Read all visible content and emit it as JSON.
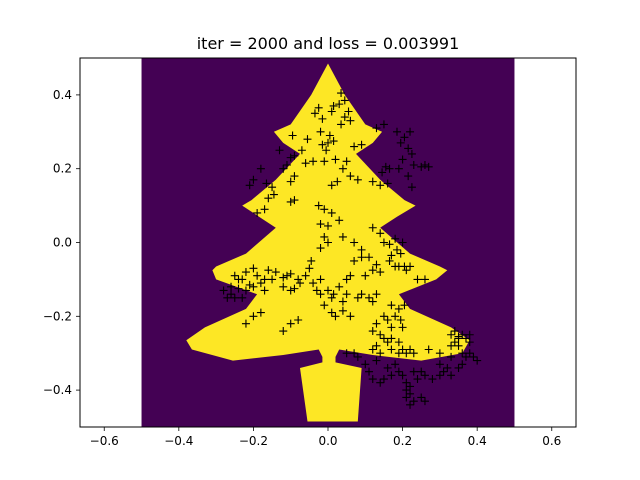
{
  "chart_data": {
    "type": "scatter",
    "title": "iter = 2000 and loss = 0.003991",
    "xlabel": "",
    "ylabel": "",
    "xlim": [
      -0.665,
      0.665
    ],
    "ylim": [
      -0.5,
      0.5
    ],
    "xticks": [
      -0.6,
      -0.4,
      -0.2,
      0.0,
      0.2,
      0.4,
      0.6
    ],
    "xtick_labels": [
      "−0.6",
      "−0.4",
      "−0.2",
      "0.0",
      "0.2",
      "0.4",
      "0.6"
    ],
    "yticks": [
      -0.4,
      -0.2,
      0.0,
      0.2,
      0.4
    ],
    "ytick_labels": [
      "−0.4",
      "−0.2",
      "0.0",
      "0.2",
      "0.4"
    ],
    "grid": false,
    "background_region": {
      "x": [
        -0.5,
        0.5
      ],
      "y": [
        -0.5,
        0.5
      ],
      "color": "#440154"
    },
    "decision_region": {
      "shape": "christmas tree",
      "color": "#fde725"
    },
    "tree_outline": [
      [
        0.0,
        0.485
      ],
      [
        0.045,
        0.4
      ],
      [
        0.1,
        0.32
      ],
      [
        0.145,
        0.3
      ],
      [
        0.12,
        0.27
      ],
      [
        0.075,
        0.24
      ],
      [
        0.14,
        0.17
      ],
      [
        0.205,
        0.115
      ],
      [
        0.235,
        0.1
      ],
      [
        0.185,
        0.07
      ],
      [
        0.14,
        0.04
      ],
      [
        0.22,
        -0.03
      ],
      [
        0.3,
        -0.065
      ],
      [
        0.32,
        -0.075
      ],
      [
        0.29,
        -0.1
      ],
      [
        0.19,
        -0.14
      ],
      [
        0.22,
        -0.18
      ],
      [
        0.33,
        -0.23
      ],
      [
        0.38,
        -0.265
      ],
      [
        0.36,
        -0.3
      ],
      [
        0.25,
        -0.32
      ],
      [
        0.12,
        -0.305
      ],
      [
        0.03,
        -0.29
      ],
      [
        0.02,
        -0.31
      ],
      [
        0.02,
        -0.325
      ],
      [
        0.09,
        -0.34
      ],
      [
        0.08,
        -0.485
      ],
      [
        -0.055,
        -0.485
      ],
      [
        -0.075,
        -0.34
      ],
      [
        -0.015,
        -0.325
      ],
      [
        -0.015,
        -0.31
      ],
      [
        -0.025,
        -0.29
      ],
      [
        -0.12,
        -0.305
      ],
      [
        -0.255,
        -0.32
      ],
      [
        -0.365,
        -0.29
      ],
      [
        -0.38,
        -0.265
      ],
      [
        -0.33,
        -0.23
      ],
      [
        -0.22,
        -0.18
      ],
      [
        -0.19,
        -0.14
      ],
      [
        -0.3,
        -0.1
      ],
      [
        -0.31,
        -0.075
      ],
      [
        -0.3,
        -0.065
      ],
      [
        -0.22,
        -0.03
      ],
      [
        -0.14,
        0.04
      ],
      [
        -0.185,
        0.07
      ],
      [
        -0.23,
        0.1
      ],
      [
        -0.205,
        0.115
      ],
      [
        -0.14,
        0.17
      ],
      [
        -0.075,
        0.24
      ],
      [
        -0.12,
        0.27
      ],
      [
        -0.145,
        0.3
      ],
      [
        -0.1,
        0.32
      ],
      [
        -0.045,
        0.4
      ]
    ],
    "series": [
      {
        "marker": "+",
        "color": "#000000",
        "points": [
          [
            0.035,
            0.405
          ],
          [
            0.045,
            0.385
          ],
          [
            0.03,
            0.375
          ],
          [
            0.015,
            0.37
          ],
          [
            0.055,
            0.355
          ],
          [
            -0.025,
            0.365
          ],
          [
            -0.035,
            0.35
          ],
          [
            0.01,
            0.355
          ],
          [
            -0.015,
            0.335
          ],
          [
            0.045,
            0.34
          ],
          [
            0.035,
            0.32
          ],
          [
            0.06,
            0.33
          ],
          [
            -0.02,
            0.3
          ],
          [
            0.005,
            0.29
          ],
          [
            0.0,
            0.27
          ],
          [
            -0.015,
            0.265
          ],
          [
            0.015,
            0.275
          ],
          [
            -0.005,
            0.25
          ],
          [
            0.02,
            0.225
          ],
          [
            -0.01,
            0.22
          ],
          [
            0.07,
            0.26
          ],
          [
            0.09,
            0.265
          ],
          [
            0.13,
            0.31
          ],
          [
            0.15,
            0.32
          ],
          [
            0.185,
            0.3
          ],
          [
            0.22,
            0.3
          ],
          [
            0.205,
            0.285
          ],
          [
            0.195,
            0.27
          ],
          [
            0.215,
            0.255
          ],
          [
            0.225,
            0.24
          ],
          [
            0.2,
            0.225
          ],
          [
            0.23,
            0.21
          ],
          [
            0.25,
            0.205
          ],
          [
            0.26,
            0.21
          ],
          [
            0.27,
            0.205
          ],
          [
            0.155,
            0.205
          ],
          [
            0.165,
            0.2
          ],
          [
            0.145,
            0.19
          ],
          [
            0.19,
            0.2
          ],
          [
            0.215,
            0.18
          ],
          [
            0.225,
            0.15
          ],
          [
            0.16,
            0.16
          ],
          [
            0.14,
            0.155
          ],
          [
            0.12,
            0.165
          ],
          [
            0.05,
            0.22
          ],
          [
            0.04,
            0.2
          ],
          [
            0.06,
            0.18
          ],
          [
            0.08,
            0.17
          ],
          [
            0.025,
            0.165
          ],
          [
            0.01,
            0.155
          ],
          [
            -0.04,
            0.22
          ],
          [
            -0.06,
            0.215
          ],
          [
            -0.09,
            0.235
          ],
          [
            -0.1,
            0.23
          ],
          [
            -0.07,
            0.25
          ],
          [
            -0.055,
            0.28
          ],
          [
            -0.095,
            0.29
          ],
          [
            -0.13,
            0.25
          ],
          [
            -0.18,
            0.2
          ],
          [
            -0.2,
            0.17
          ],
          [
            -0.21,
            0.155
          ],
          [
            -0.165,
            0.16
          ],
          [
            -0.15,
            0.15
          ],
          [
            -0.145,
            0.13
          ],
          [
            -0.16,
            0.12
          ],
          [
            -0.12,
            0.2
          ],
          [
            -0.11,
            0.21
          ],
          [
            -0.09,
            0.18
          ],
          [
            -0.1,
            0.165
          ],
          [
            -0.17,
            0.09
          ],
          [
            -0.19,
            0.08
          ],
          [
            -0.09,
            0.115
          ],
          [
            -0.1,
            0.11
          ],
          [
            -0.025,
            0.1
          ],
          [
            -0.01,
            0.09
          ],
          [
            0.01,
            0.08
          ],
          [
            0.03,
            0.06
          ],
          [
            -0.02,
            0.05
          ],
          [
            0.0,
            0.045
          ],
          [
            -0.01,
            0.015
          ],
          [
            0.0,
            0.0
          ],
          [
            -0.02,
            -0.015
          ],
          [
            -0.045,
            -0.05
          ],
          [
            -0.05,
            -0.07
          ],
          [
            -0.06,
            -0.09
          ],
          [
            0.04,
            0.015
          ],
          [
            0.07,
            0.0
          ],
          [
            0.09,
            -0.02
          ],
          [
            0.11,
            -0.04
          ],
          [
            0.13,
            -0.06
          ],
          [
            0.14,
            -0.08
          ],
          [
            0.12,
            -0.075
          ],
          [
            0.1,
            -0.09
          ],
          [
            0.12,
            0.04
          ],
          [
            0.14,
            0.025
          ],
          [
            0.15,
            0.0
          ],
          [
            0.165,
            -0.005
          ],
          [
            0.18,
            0.01
          ],
          [
            0.185,
            -0.02
          ],
          [
            0.195,
            -0.03
          ],
          [
            0.2,
            0.0
          ],
          [
            0.17,
            -0.035
          ],
          [
            0.165,
            -0.05
          ],
          [
            0.18,
            -0.065
          ],
          [
            0.19,
            -0.065
          ],
          [
            0.205,
            -0.065
          ],
          [
            0.22,
            -0.065
          ],
          [
            0.21,
            -0.075
          ],
          [
            0.24,
            -0.1
          ],
          [
            0.26,
            -0.1
          ],
          [
            0.09,
            -0.04
          ],
          [
            0.07,
            -0.05
          ],
          [
            0.06,
            -0.09
          ],
          [
            0.05,
            -0.1
          ],
          [
            -0.02,
            -0.1
          ],
          [
            -0.04,
            -0.11
          ],
          [
            -0.08,
            -0.1
          ],
          [
            -0.1,
            -0.085
          ],
          [
            -0.11,
            -0.09
          ],
          [
            -0.12,
            -0.095
          ],
          [
            -0.14,
            -0.08
          ],
          [
            -0.16,
            -0.075
          ],
          [
            -0.15,
            -0.1
          ],
          [
            -0.17,
            -0.1
          ],
          [
            -0.2,
            -0.07
          ],
          [
            -0.22,
            -0.08
          ],
          [
            -0.19,
            -0.09
          ],
          [
            -0.2,
            -0.12
          ],
          [
            -0.21,
            -0.115
          ],
          [
            -0.23,
            -0.1
          ],
          [
            -0.24,
            -0.1
          ],
          [
            -0.25,
            -0.09
          ],
          [
            -0.22,
            -0.13
          ],
          [
            -0.24,
            -0.125
          ],
          [
            -0.26,
            -0.12
          ],
          [
            -0.28,
            -0.13
          ],
          [
            -0.26,
            -0.14
          ],
          [
            -0.25,
            -0.15
          ],
          [
            -0.27,
            -0.15
          ],
          [
            -0.23,
            -0.15
          ],
          [
            -0.18,
            -0.11
          ],
          [
            -0.17,
            -0.13
          ],
          [
            -0.12,
            -0.12
          ],
          [
            -0.1,
            -0.13
          ],
          [
            -0.09,
            -0.125
          ],
          [
            -0.075,
            -0.11
          ],
          [
            -0.03,
            -0.13
          ],
          [
            -0.02,
            -0.14
          ],
          [
            0.0,
            -0.13
          ],
          [
            0.01,
            -0.15
          ],
          [
            0.015,
            -0.14
          ],
          [
            0.03,
            -0.12
          ],
          [
            0.04,
            -0.16
          ],
          [
            0.05,
            -0.14
          ],
          [
            0.08,
            -0.15
          ],
          [
            0.09,
            -0.14
          ],
          [
            0.11,
            -0.15
          ],
          [
            0.12,
            -0.16
          ],
          [
            0.13,
            -0.14
          ],
          [
            0.17,
            -0.17
          ],
          [
            0.19,
            -0.18
          ],
          [
            0.205,
            -0.17
          ],
          [
            0.15,
            -0.2
          ],
          [
            0.16,
            -0.21
          ],
          [
            0.18,
            -0.2
          ],
          [
            0.195,
            -0.21
          ],
          [
            0.2,
            -0.23
          ],
          [
            0.17,
            -0.23
          ],
          [
            0.13,
            -0.22
          ],
          [
            0.12,
            -0.24
          ],
          [
            0.14,
            -0.25
          ],
          [
            0.15,
            -0.26
          ],
          [
            0.17,
            -0.26
          ],
          [
            0.19,
            -0.27
          ],
          [
            0.16,
            -0.27
          ],
          [
            0.13,
            -0.28
          ],
          [
            0.12,
            -0.29
          ],
          [
            0.14,
            -0.3
          ],
          [
            0.17,
            -0.29
          ],
          [
            0.2,
            -0.29
          ],
          [
            0.22,
            -0.29
          ],
          [
            0.23,
            -0.3
          ],
          [
            0.21,
            -0.3
          ],
          [
            0.19,
            -0.3
          ],
          [
            0.27,
            -0.29
          ],
          [
            0.3,
            -0.3
          ],
          [
            0.33,
            -0.25
          ],
          [
            0.34,
            -0.24
          ],
          [
            0.35,
            -0.255
          ],
          [
            0.36,
            -0.25
          ],
          [
            0.37,
            -0.26
          ],
          [
            0.38,
            -0.25
          ],
          [
            0.34,
            -0.27
          ],
          [
            0.35,
            -0.28
          ],
          [
            0.36,
            -0.3
          ],
          [
            0.37,
            -0.31
          ],
          [
            0.38,
            -0.3
          ],
          [
            0.39,
            -0.31
          ],
          [
            0.4,
            -0.32
          ],
          [
            0.36,
            -0.33
          ],
          [
            0.35,
            -0.34
          ],
          [
            0.33,
            -0.31
          ],
          [
            0.32,
            -0.34
          ],
          [
            0.3,
            -0.33
          ],
          [
            0.31,
            -0.35
          ],
          [
            0.3,
            -0.36
          ],
          [
            0.33,
            -0.36
          ],
          [
            0.28,
            -0.37
          ],
          [
            0.26,
            -0.36
          ],
          [
            0.25,
            -0.35
          ],
          [
            0.23,
            -0.35
          ],
          [
            0.24,
            -0.37
          ],
          [
            0.2,
            -0.36
          ],
          [
            0.19,
            -0.35
          ],
          [
            0.17,
            -0.36
          ],
          [
            0.15,
            -0.37
          ],
          [
            0.14,
            -0.38
          ],
          [
            0.12,
            -0.37
          ],
          [
            0.11,
            -0.35
          ],
          [
            0.1,
            -0.33
          ],
          [
            0.08,
            -0.31
          ],
          [
            0.07,
            -0.3
          ],
          [
            0.05,
            -0.3
          ],
          [
            0.13,
            -0.32
          ],
          [
            0.16,
            -0.34
          ],
          [
            0.18,
            -0.33
          ],
          [
            0.21,
            -0.38
          ],
          [
            0.22,
            -0.39
          ],
          [
            0.21,
            -0.4
          ],
          [
            0.22,
            -0.41
          ],
          [
            0.21,
            -0.42
          ],
          [
            0.23,
            -0.43
          ],
          [
            0.22,
            -0.44
          ],
          [
            0.25,
            -0.42
          ],
          [
            0.26,
            -0.43
          ],
          [
            -0.18,
            -0.19
          ],
          [
            -0.2,
            -0.2
          ],
          [
            -0.22,
            -0.22
          ],
          [
            -0.1,
            -0.22
          ],
          [
            -0.12,
            -0.24
          ],
          [
            -0.08,
            -0.21
          ],
          [
            0.01,
            -0.19
          ],
          [
            0.02,
            -0.2
          ],
          [
            0.04,
            -0.185
          ],
          [
            0.06,
            -0.2
          ],
          [
            -0.01,
            -0.17
          ],
          [
            0.35,
            -0.26
          ],
          [
            0.33,
            -0.28
          ],
          [
            0.38,
            -0.27
          ]
        ]
      }
    ]
  }
}
